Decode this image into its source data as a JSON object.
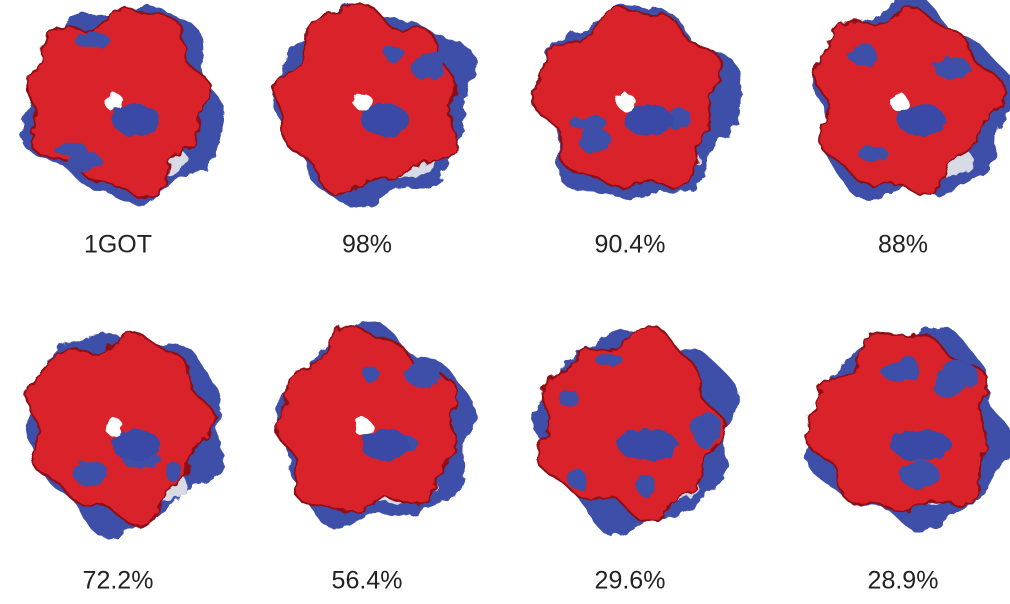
{
  "figure": {
    "panels": [
      {
        "label": "1GOT"
      },
      {
        "label": "98%"
      },
      {
        "label": "90.4%"
      },
      {
        "label": "88%"
      },
      {
        "label": "72.2%"
      },
      {
        "label": "56.4%"
      },
      {
        "label": "29.6%"
      },
      {
        "label": "28.9%"
      }
    ]
  }
}
